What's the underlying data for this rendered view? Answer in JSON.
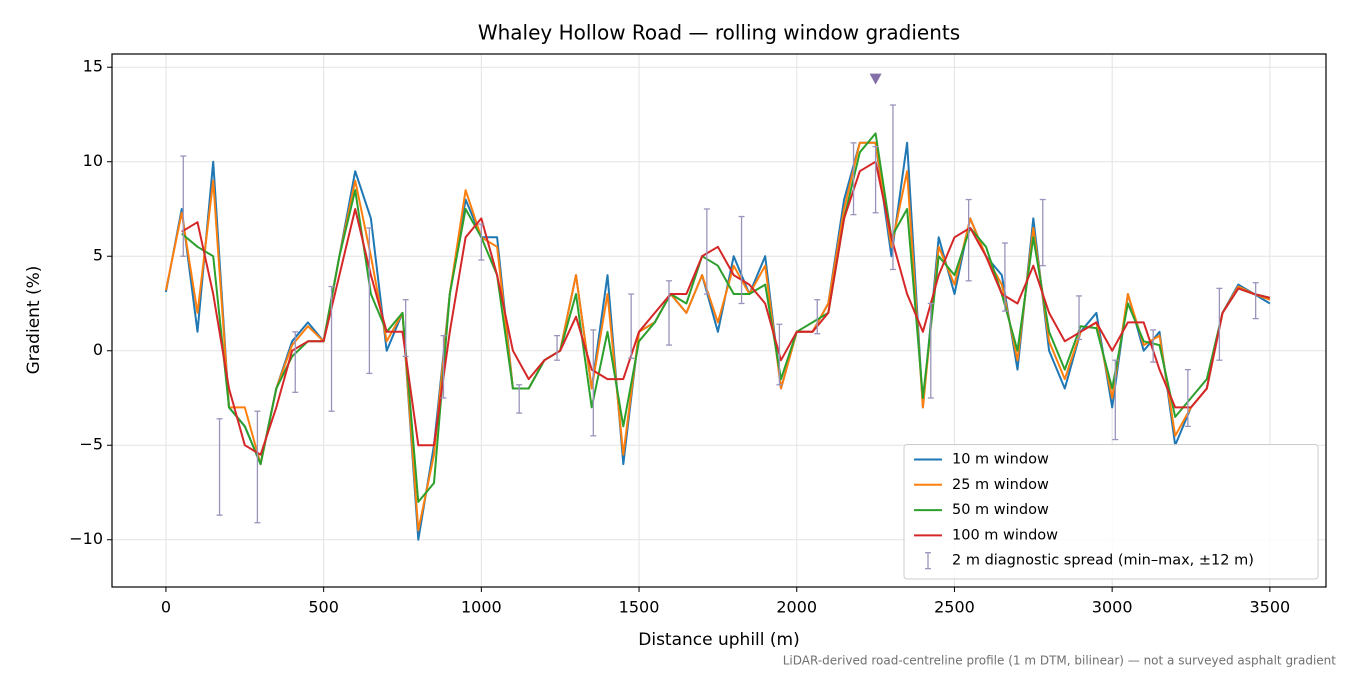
{
  "chart_data": {
    "type": "line",
    "title": "Whaley Hollow Road — rolling window gradients",
    "x_label": "Distance uphill (m)",
    "y_label": "Gradient (%)",
    "footnote": "LiDAR-derived road-centreline profile (1 m DTM, bilinear) — not a surveyed asphalt gradient",
    "xlim": [
      -171,
      3678
    ],
    "ylim": [
      -12.5,
      15.7
    ],
    "xticks": [
      0,
      500,
      1000,
      1500,
      2000,
      2500,
      3000,
      3500
    ],
    "yticks": [
      {
        "value": -10,
        "label": "−10"
      },
      {
        "value": -5,
        "label": "−5"
      },
      0,
      5,
      10,
      15
    ],
    "grid": true,
    "legend": "lower right",
    "x": [
      0,
      50,
      100,
      150,
      200,
      250,
      300,
      350,
      400,
      450,
      500,
      550,
      600,
      650,
      700,
      750,
      800,
      850,
      900,
      950,
      1000,
      1050,
      1100,
      1150,
      1200,
      1250,
      1300,
      1350,
      1400,
      1450,
      1500,
      1550,
      1600,
      1650,
      1700,
      1750,
      1800,
      1850,
      1900,
      1950,
      2000,
      2050,
      2100,
      2150,
      2200,
      2250,
      2300,
      2350,
      2400,
      2450,
      2500,
      2550,
      2600,
      2650,
      2700,
      2750,
      2800,
      2850,
      2900,
      2950,
      3000,
      3050,
      3100,
      3150,
      3200,
      3250,
      3300,
      3350,
      3400,
      3450,
      3500
    ],
    "series": [
      {
        "name": "10 m window",
        "color": "#1f77b4",
        "values": [
          3.1,
          7.5,
          1,
          10,
          -3,
          -4,
          -6,
          -2,
          0.5,
          1.5,
          0.5,
          5,
          9.5,
          7,
          0,
          2,
          -10,
          -5,
          3,
          8,
          6,
          6,
          -2,
          -2,
          -0.5,
          0,
          4,
          -2,
          4,
          -6,
          1,
          1.5,
          3,
          2,
          4,
          1,
          5,
          3,
          5,
          -2,
          1,
          1,
          2.5,
          8,
          11,
          11,
          5,
          11,
          -3,
          6,
          3,
          7,
          5,
          4,
          -1,
          7,
          0,
          -2,
          1,
          2,
          -3,
          3,
          0,
          1,
          -5,
          -3,
          -2,
          2,
          3.5,
          3,
          2.5
        ]
      },
      {
        "name": "25 m window",
        "color": "#ff7f0e",
        "values": [
          3.2,
          7.3,
          2,
          9,
          -3,
          -3,
          -6,
          -2,
          0.3,
          1.3,
          0.5,
          5,
          9,
          5,
          0.5,
          2,
          -9.5,
          -5.5,
          3,
          8.5,
          6,
          5.5,
          -2,
          -2,
          -0.5,
          0,
          4,
          -2,
          3,
          -5.5,
          1,
          1.5,
          3,
          2,
          4,
          1.5,
          4.5,
          3,
          4.5,
          -2,
          1,
          1,
          2.5,
          7.5,
          11,
          11,
          5.5,
          9.5,
          -3,
          5.5,
          3.5,
          7,
          5,
          3.5,
          -0.5,
          6.5,
          0.5,
          -1.5,
          1,
          1.5,
          -2.5,
          3,
          0.3,
          0.8,
          -4.5,
          -3,
          -2,
          2,
          3.4,
          3,
          2.7
        ]
      },
      {
        "name": "50 m window",
        "color": "#2ca02c",
        "values": [
          null,
          6.2,
          5.5,
          5,
          -3,
          -4,
          -6,
          -2,
          -0.3,
          0.5,
          0.5,
          5,
          8.5,
          3,
          1,
          2,
          -8,
          -7,
          3,
          7.5,
          6,
          4,
          -2,
          -2,
          -0.5,
          0,
          3,
          -3,
          1,
          -4,
          0.5,
          1.5,
          3,
          2.5,
          5,
          4.5,
          3,
          3,
          3.5,
          -1.5,
          1,
          1.5,
          2,
          7,
          10.5,
          11.5,
          6,
          7.5,
          -2.5,
          5,
          4,
          6.5,
          5.5,
          3,
          0,
          6,
          1,
          -1,
          1.3,
          1.2,
          -2,
          2.5,
          0.5,
          0.3,
          -3.5,
          -2.5,
          -1.5,
          2,
          3.3,
          3,
          2.8
        ]
      },
      {
        "name": "100 m window",
        "color": "#d62728",
        "values": [
          null,
          6.3,
          6.8,
          3,
          -2,
          -5,
          -5.5,
          -3,
          0,
          0.5,
          0.5,
          4,
          7.5,
          4,
          1,
          1,
          -5,
          -5,
          1,
          6,
          7,
          4,
          0,
          -1.5,
          -0.5,
          0,
          1.8,
          -1,
          -1.5,
          -1.5,
          1,
          2,
          3,
          3,
          5,
          5.5,
          4,
          3.5,
          2.5,
          -0.5,
          1,
          1,
          2,
          7,
          9.5,
          10,
          6,
          3,
          1,
          4,
          6,
          6.5,
          5,
          3,
          2.5,
          4.5,
          2,
          0.5,
          1,
          1.5,
          0,
          1.5,
          1.5,
          -1,
          -3,
          -3,
          -2,
          2,
          3.3,
          3,
          2.8
        ]
      }
    ],
    "error_bars": {
      "name": "2 m diagnostic spread (min–max, ±12 m)",
      "color": "#9a94bc",
      "x": [
        55,
        170,
        290,
        410,
        525,
        645,
        760,
        880,
        1000,
        1120,
        1240,
        1355,
        1475,
        1595,
        1715,
        1825,
        1945,
        2065,
        2180,
        2250,
        2305,
        2425,
        2545,
        2660,
        2780,
        2895,
        3010,
        3130,
        3240,
        3340,
        3455
      ],
      "low": [
        5,
        -8.7,
        -9.1,
        -2.2,
        -3.2,
        -1.2,
        -0.3,
        -2.5,
        4.8,
        -3.3,
        -0.5,
        -4.5,
        -0.4,
        0.3,
        3,
        2.5,
        -1.8,
        0.9,
        7.2,
        7.3,
        4.3,
        -2.5,
        3.7,
        2.1,
        4.5,
        0.6,
        -4.7,
        -0.6,
        -4,
        -0.5,
        1.7
      ],
      "high": [
        10.3,
        -3.6,
        -3.2,
        1,
        3.4,
        6.5,
        2.7,
        0.8,
        6.7,
        -1.8,
        0.8,
        1.1,
        3,
        3.7,
        7.5,
        7.1,
        1.4,
        2.7,
        11,
        10.8,
        13,
        2.5,
        8,
        5.7,
        8,
        2.9,
        -0.5,
        1.1,
        -1,
        3.3,
        3.6
      ]
    },
    "peak_marker": {
      "x": 2250,
      "y": 14.4,
      "color": "#8470a8"
    }
  }
}
